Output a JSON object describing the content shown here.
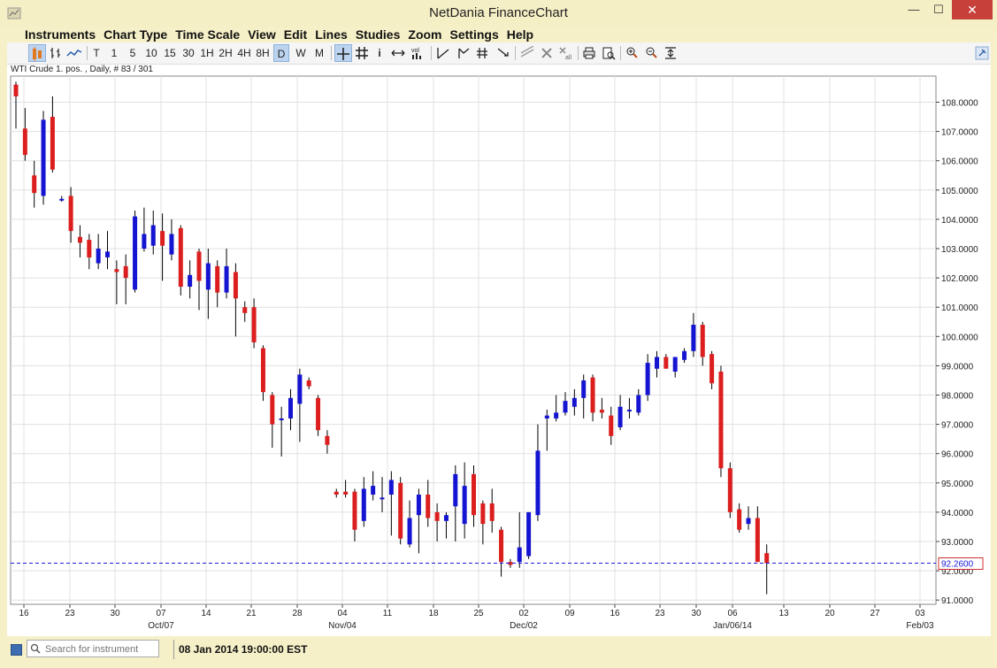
{
  "window": {
    "title": "NetDania FinanceChart",
    "min_label": "—",
    "max_label": "☐",
    "close_label": "✕"
  },
  "menu": [
    "Instruments",
    "Chart Type",
    "Time Scale",
    "View",
    "Edit",
    "Lines",
    "Studies",
    "Zoom",
    "Settings",
    "Help"
  ],
  "toolbar": {
    "timescales": [
      "T",
      "1",
      "5",
      "10",
      "15",
      "30",
      "1H",
      "2H",
      "4H",
      "8H",
      "D",
      "W",
      "M"
    ],
    "selected_timescale": "D",
    "chart_type_selected": "candlestick"
  },
  "instrument_info": "WTI Crude 1. pos. , Daily, # 83 / 301",
  "last_price_label": "92.2600",
  "status": {
    "search_placeholder": "Search for instrument",
    "timestamp": "08 Jan 2014 19:00:00 EST"
  },
  "colors": {
    "up": "#1414d2",
    "down": "#dc1e1e",
    "wick": "#000000",
    "price_line": "#1a1ad6",
    "grid": "#e0e0e0"
  },
  "chart_data": {
    "type": "candlestick",
    "title": "",
    "ylim": [
      90.8,
      109.0
    ],
    "yticks": [
      "108.0000",
      "107.0000",
      "106.0000",
      "105.0000",
      "104.0000",
      "103.0000",
      "102.0000",
      "101.0000",
      "100.0000",
      "99.0000",
      "98.0000",
      "97.0000",
      "96.0000",
      "95.0000",
      "94.0000",
      "93.0000",
      "92.0000",
      "91.0000"
    ],
    "xday_labels": [
      "16",
      "23",
      "30",
      "07",
      "14",
      "21",
      "28",
      "04",
      "11",
      "18",
      "25",
      "02",
      "09",
      "16",
      "23",
      "30",
      "06",
      "13",
      "20",
      "27",
      "03"
    ],
    "xmonth_labels": [
      "Oct/07",
      "Nov/04",
      "Dec/02",
      "Jan/06/14",
      "Feb/03"
    ],
    "last_close": 92.26,
    "candles": [
      {
        "date": "2013-09-16",
        "o": 108.6,
        "h": 108.7,
        "l": 107.1,
        "c": 108.2
      },
      {
        "date": "2013-09-17",
        "o": 107.1,
        "h": 107.8,
        "l": 106.0,
        "c": 106.2
      },
      {
        "date": "2013-09-18",
        "o": 105.5,
        "h": 106.0,
        "l": 104.4,
        "c": 104.9
      },
      {
        "date": "2013-09-19",
        "o": 104.8,
        "h": 107.7,
        "l": 104.5,
        "c": 107.4
      },
      {
        "date": "2013-09-20",
        "o": 107.5,
        "h": 108.2,
        "l": 105.6,
        "c": 105.7
      },
      {
        "date": "2013-09-23",
        "o": 104.7,
        "h": 104.8,
        "l": 104.6,
        "c": 104.7
      },
      {
        "date": "2013-09-24",
        "o": 104.8,
        "h": 105.1,
        "l": 103.2,
        "c": 103.6
      },
      {
        "date": "2013-09-25",
        "o": 103.4,
        "h": 103.8,
        "l": 102.7,
        "c": 103.2
      },
      {
        "date": "2013-09-26",
        "o": 103.3,
        "h": 103.5,
        "l": 102.3,
        "c": 102.7
      },
      {
        "date": "2013-09-27",
        "o": 102.5,
        "h": 103.5,
        "l": 102.3,
        "c": 103.0
      },
      {
        "date": "2013-09-30",
        "o": 102.7,
        "h": 103.6,
        "l": 102.3,
        "c": 102.9
      },
      {
        "date": "2013-10-01",
        "o": 102.3,
        "h": 102.6,
        "l": 101.1,
        "c": 102.2
      },
      {
        "date": "2013-10-02",
        "o": 102.4,
        "h": 102.8,
        "l": 101.1,
        "c": 102.0
      },
      {
        "date": "2013-10-03",
        "o": 101.6,
        "h": 104.3,
        "l": 101.5,
        "c": 104.1
      },
      {
        "date": "2013-10-04",
        "o": 103.0,
        "h": 104.4,
        "l": 102.9,
        "c": 103.5
      },
      {
        "date": "2013-10-07",
        "o": 103.1,
        "h": 104.3,
        "l": 102.8,
        "c": 103.8
      },
      {
        "date": "2013-10-08",
        "o": 103.6,
        "h": 104.2,
        "l": 101.9,
        "c": 103.1
      },
      {
        "date": "2013-10-09",
        "o": 102.8,
        "h": 104.0,
        "l": 102.6,
        "c": 103.5
      },
      {
        "date": "2013-10-10",
        "o": 103.7,
        "h": 103.8,
        "l": 101.4,
        "c": 101.7
      },
      {
        "date": "2013-10-11",
        "o": 101.7,
        "h": 102.6,
        "l": 101.3,
        "c": 102.1
      },
      {
        "date": "2013-10-14",
        "o": 102.9,
        "h": 103.0,
        "l": 100.9,
        "c": 101.9
      },
      {
        "date": "2013-10-15",
        "o": 101.6,
        "h": 103.0,
        "l": 100.6,
        "c": 102.5
      },
      {
        "date": "2013-10-16",
        "o": 102.4,
        "h": 102.6,
        "l": 101.0,
        "c": 101.5
      },
      {
        "date": "2013-10-17",
        "o": 101.5,
        "h": 103.0,
        "l": 101.3,
        "c": 102.4
      },
      {
        "date": "2013-10-18",
        "o": 102.2,
        "h": 102.5,
        "l": 100.0,
        "c": 101.3
      },
      {
        "date": "2013-10-21",
        "o": 101.0,
        "h": 101.2,
        "l": 100.5,
        "c": 100.8
      },
      {
        "date": "2013-10-22",
        "o": 101.0,
        "h": 101.3,
        "l": 99.6,
        "c": 99.8
      },
      {
        "date": "2013-10-23",
        "o": 99.6,
        "h": 99.7,
        "l": 97.8,
        "c": 98.1
      },
      {
        "date": "2013-10-24",
        "o": 98.0,
        "h": 98.1,
        "l": 96.2,
        "c": 97.0
      },
      {
        "date": "2013-10-25",
        "o": 97.2,
        "h": 97.6,
        "l": 95.9,
        "c": 97.2
      },
      {
        "date": "2013-10-28",
        "o": 97.2,
        "h": 98.2,
        "l": 96.8,
        "c": 97.9
      },
      {
        "date": "2013-10-29",
        "o": 97.7,
        "h": 98.9,
        "l": 96.4,
        "c": 98.7
      },
      {
        "date": "2013-10-30",
        "o": 98.5,
        "h": 98.6,
        "l": 98.2,
        "c": 98.3
      },
      {
        "date": "2013-10-31",
        "o": 97.9,
        "h": 98.0,
        "l": 96.6,
        "c": 96.8
      },
      {
        "date": "2013-11-01",
        "o": 96.6,
        "h": 96.8,
        "l": 96.0,
        "c": 96.3
      },
      {
        "date": "2013-11-04",
        "o": 94.7,
        "h": 94.8,
        "l": 94.5,
        "c": 94.6
      },
      {
        "date": "2013-11-05",
        "o": 94.7,
        "h": 95.1,
        "l": 94.5,
        "c": 94.6
      },
      {
        "date": "2013-11-06",
        "o": 94.7,
        "h": 94.8,
        "l": 93.0,
        "c": 93.4
      },
      {
        "date": "2013-11-07",
        "o": 93.7,
        "h": 95.2,
        "l": 93.5,
        "c": 94.8
      },
      {
        "date": "2013-11-08",
        "o": 94.6,
        "h": 95.4,
        "l": 94.4,
        "c": 94.9
      },
      {
        "date": "2013-11-11",
        "o": 94.5,
        "h": 95.2,
        "l": 94.0,
        "c": 94.5
      },
      {
        "date": "2013-11-12",
        "o": 94.6,
        "h": 95.4,
        "l": 93.2,
        "c": 95.1
      },
      {
        "date": "2013-11-13",
        "o": 95.0,
        "h": 95.2,
        "l": 92.9,
        "c": 93.1
      },
      {
        "date": "2013-11-14",
        "o": 92.9,
        "h": 94.4,
        "l": 92.8,
        "c": 93.8
      },
      {
        "date": "2013-11-15",
        "o": 93.9,
        "h": 94.8,
        "l": 92.6,
        "c": 94.6
      },
      {
        "date": "2013-11-18",
        "o": 94.6,
        "h": 95.1,
        "l": 93.5,
        "c": 93.8
      },
      {
        "date": "2013-11-19",
        "o": 94.0,
        "h": 94.3,
        "l": 93.0,
        "c": 93.7
      },
      {
        "date": "2013-11-20",
        "o": 93.7,
        "h": 94.0,
        "l": 93.1,
        "c": 93.9
      },
      {
        "date": "2013-11-21",
        "o": 94.2,
        "h": 95.6,
        "l": 93.0,
        "c": 95.3
      },
      {
        "date": "2013-11-22",
        "o": 93.6,
        "h": 95.7,
        "l": 93.1,
        "c": 94.9
      },
      {
        "date": "2013-11-25",
        "o": 95.3,
        "h": 95.6,
        "l": 93.5,
        "c": 93.9
      },
      {
        "date": "2013-11-26",
        "o": 94.3,
        "h": 94.4,
        "l": 92.9,
        "c": 93.6
      },
      {
        "date": "2013-11-27",
        "o": 94.3,
        "h": 94.8,
        "l": 93.3,
        "c": 93.7
      },
      {
        "date": "2013-11-29",
        "o": 93.4,
        "h": 93.5,
        "l": 91.8,
        "c": 92.3
      },
      {
        "date": "2013-12-02",
        "o": 92.3,
        "h": 92.4,
        "l": 92.1,
        "c": 92.2
      },
      {
        "date": "2013-12-03",
        "o": 92.3,
        "h": 94.0,
        "l": 92.1,
        "c": 92.8
      },
      {
        "date": "2013-12-04",
        "o": 92.5,
        "h": 94.0,
        "l": 92.4,
        "c": 94.0
      },
      {
        "date": "2013-12-05",
        "o": 93.9,
        "h": 97.0,
        "l": 93.7,
        "c": 96.1
      },
      {
        "date": "2013-12-06",
        "o": 97.2,
        "h": 97.5,
        "l": 96.1,
        "c": 97.3
      },
      {
        "date": "2013-12-09",
        "o": 97.2,
        "h": 98.0,
        "l": 97.1,
        "c": 97.4
      },
      {
        "date": "2013-12-10",
        "o": 97.4,
        "h": 98.1,
        "l": 97.3,
        "c": 97.8
      },
      {
        "date": "2013-12-11",
        "o": 97.6,
        "h": 98.2,
        "l": 97.3,
        "c": 97.9
      },
      {
        "date": "2013-12-12",
        "o": 97.9,
        "h": 98.7,
        "l": 97.2,
        "c": 98.5
      },
      {
        "date": "2013-12-13",
        "o": 98.6,
        "h": 98.7,
        "l": 97.1,
        "c": 97.4
      },
      {
        "date": "2013-12-16",
        "o": 97.5,
        "h": 97.9,
        "l": 97.2,
        "c": 97.4
      },
      {
        "date": "2013-12-17",
        "o": 97.3,
        "h": 97.6,
        "l": 96.3,
        "c": 96.6
      },
      {
        "date": "2013-12-18",
        "o": 96.9,
        "h": 98.0,
        "l": 96.8,
        "c": 97.6
      },
      {
        "date": "2013-12-19",
        "o": 97.5,
        "h": 97.9,
        "l": 97.2,
        "c": 97.5
      },
      {
        "date": "2013-12-20",
        "o": 97.4,
        "h": 98.2,
        "l": 97.3,
        "c": 98.0
      },
      {
        "date": "2013-12-23",
        "o": 98.0,
        "h": 99.4,
        "l": 97.8,
        "c": 99.1
      },
      {
        "date": "2013-12-24",
        "o": 98.9,
        "h": 99.5,
        "l": 98.6,
        "c": 99.3
      },
      {
        "date": "2013-12-26",
        "o": 99.3,
        "h": 99.4,
        "l": 98.9,
        "c": 98.9
      },
      {
        "date": "2013-12-27",
        "o": 98.8,
        "h": 99.2,
        "l": 98.6,
        "c": 99.3
      },
      {
        "date": "2013-12-30",
        "o": 99.2,
        "h": 99.6,
        "l": 99.1,
        "c": 99.5
      },
      {
        "date": "2013-12-31",
        "o": 99.5,
        "h": 100.8,
        "l": 99.3,
        "c": 100.4
      },
      {
        "date": "2014-01-01",
        "o": 100.4,
        "h": 100.5,
        "l": 99.0,
        "c": 99.3
      },
      {
        "date": "2014-01-02",
        "o": 99.4,
        "h": 99.5,
        "l": 98.2,
        "c": 98.4
      },
      {
        "date": "2014-01-03",
        "o": 98.8,
        "h": 99.0,
        "l": 95.2,
        "c": 95.5
      },
      {
        "date": "2014-01-06",
        "o": 95.5,
        "h": 95.7,
        "l": 93.8,
        "c": 94.0
      },
      {
        "date": "2014-01-07",
        "o": 94.1,
        "h": 94.3,
        "l": 93.3,
        "c": 93.4
      },
      {
        "date": "2014-01-07b",
        "o": 93.6,
        "h": 94.2,
        "l": 93.4,
        "c": 93.8
      },
      {
        "date": "2014-01-08",
        "o": 93.8,
        "h": 94.2,
        "l": 92.3,
        "c": 92.3
      },
      {
        "date": "2014-01-09",
        "o": 92.6,
        "h": 92.9,
        "l": 91.2,
        "c": 92.26
      }
    ]
  }
}
